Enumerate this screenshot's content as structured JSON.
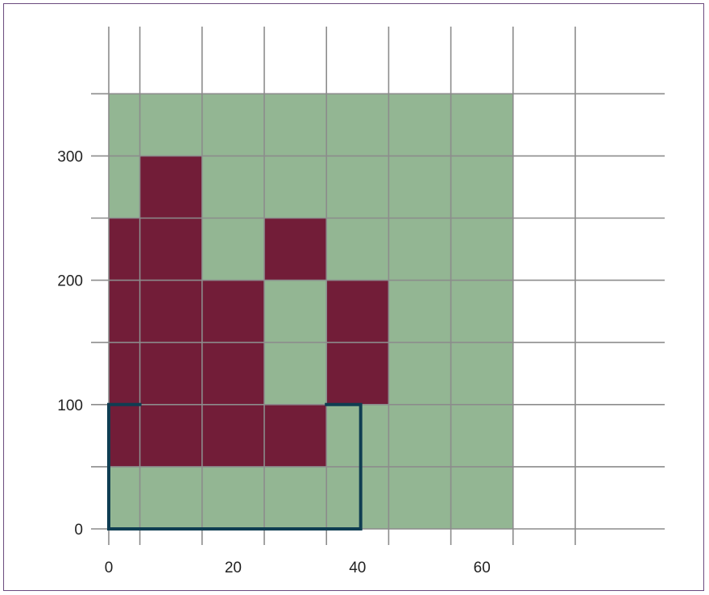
{
  "chart_data": {
    "type": "heatmap",
    "title": "",
    "xlabel": "",
    "ylabel": "",
    "xlim": [
      0,
      90
    ],
    "ylim": [
      0,
      350
    ],
    "x_ticks": [
      0,
      20,
      40,
      60
    ],
    "y_ticks": [
      0,
      100,
      200,
      300
    ],
    "x_gridlines": [
      0,
      5,
      15,
      25,
      35,
      45,
      55,
      65,
      75
    ],
    "y_gridlines": [
      0,
      50,
      100,
      150,
      200,
      250,
      300,
      350
    ],
    "grid": true,
    "colors": {
      "background_cell": "#93b693",
      "highlight_cell": "#721d38",
      "outline": "#0f3d52",
      "grid": "#8c8c8c"
    },
    "background_region": {
      "x": [
        0,
        65
      ],
      "y": [
        0,
        350
      ]
    },
    "highlighted_cells": [
      {
        "x": [
          5,
          15
        ],
        "y": [
          250,
          300
        ]
      },
      {
        "x": [
          0,
          5
        ],
        "y": [
          50,
          250
        ]
      },
      {
        "x": [
          5,
          15
        ],
        "y": [
          50,
          250
        ]
      },
      {
        "x": [
          15,
          25
        ],
        "y": [
          50,
          200
        ]
      },
      {
        "x": [
          25,
          35
        ],
        "y": [
          200,
          250
        ]
      },
      {
        "x": [
          25,
          35
        ],
        "y": [
          50,
          100
        ]
      },
      {
        "x": [
          35,
          45
        ],
        "y": [
          100,
          200
        ]
      }
    ],
    "outline_path": [
      [
        5,
        100
      ],
      [
        0,
        100
      ],
      [
        0,
        0
      ],
      [
        40.5,
        0
      ],
      [
        40.5,
        100
      ],
      [
        35,
        100
      ]
    ]
  }
}
